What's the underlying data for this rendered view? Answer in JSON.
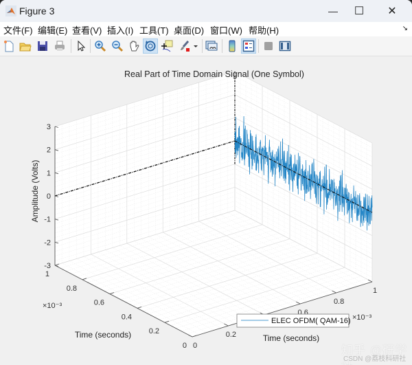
{
  "window": {
    "title": "Figure 3",
    "controls": {
      "minimize": "—",
      "maximize": "☐",
      "close": "✕"
    }
  },
  "menubar": {
    "items": [
      "文件(F)",
      "编辑(E)",
      "查看(V)",
      "插入(I)",
      "工具(T)",
      "桌面(D)",
      "窗口(W)",
      "帮助(H)"
    ],
    "dock_glyph": "↘"
  },
  "toolbar": {
    "buttons": [
      {
        "name": "new-figure-icon",
        "active": false
      },
      {
        "name": "open-file-icon",
        "active": false
      },
      {
        "name": "save-icon",
        "active": false
      },
      {
        "name": "print-icon",
        "active": false
      },
      {
        "name": "edit-plot-arrow-icon",
        "active": false
      },
      {
        "name": "zoom-in-icon",
        "active": false
      },
      {
        "name": "zoom-out-icon",
        "active": false
      },
      {
        "name": "pan-hand-icon",
        "active": false
      },
      {
        "name": "rotate-3d-icon",
        "active": true
      },
      {
        "name": "data-cursor-icon",
        "active": false
      },
      {
        "name": "brush-icon",
        "active": false
      },
      {
        "name": "link-plot-icon",
        "active": false
      },
      {
        "name": "insert-colorbar-icon",
        "active": false
      },
      {
        "name": "insert-legend-icon",
        "active": true
      },
      {
        "name": "hide-plot-tools-icon",
        "active": false
      },
      {
        "name": "show-plot-tools-icon",
        "active": false
      }
    ]
  },
  "chart_data": {
    "type": "line",
    "projection": "3d",
    "title": "Real Part of Time Domain Signal (One Symbol)",
    "zlabel": "Amplitude (Volts)",
    "xlabel": "Time (seconds)",
    "ylabel": "Time (seconds)",
    "z_ticks": [
      "3",
      "2",
      "1",
      "0",
      "-1",
      "-2",
      "-3"
    ],
    "zlim": [
      -3,
      3
    ],
    "x_ticks": [
      "0",
      "0.2",
      "0.4",
      "0.6",
      "0.8",
      "1"
    ],
    "x_exponent": "×10⁻³",
    "y_ticks": [
      "0",
      "0.2",
      "0.4",
      "0.6",
      "0.8",
      "1"
    ],
    "y_exponent": "×10⁻³",
    "xlim": [
      0,
      0.001
    ],
    "ylim": [
      0,
      0.001
    ],
    "grid": true,
    "minor_grid": true,
    "legend": {
      "entries": [
        "ELEC OFDM( QAM-16)"
      ],
      "position": "bottom-center"
    },
    "series": [
      {
        "name": "ELEC OFDM( QAM-16)",
        "color": "#0072BD",
        "description": "Noisy real-valued OFDM time-domain samples, amplitude roughly within -2.5..1.8 V, centered near 0, ~1000 samples over one symbol (0..1e-3 s)",
        "approx_range": [
          -2.6,
          1.9
        ],
        "samples": 1024
      },
      {
        "name": "zero-reference",
        "color": "#000000",
        "style": "dash-dot",
        "description": "Dashed black reference line at amplitude 0 along time axis, plus vertical dashed marker at back corner"
      }
    ]
  },
  "watermark": {
    "line1": "知乎 @研学社",
    "line2": "CSDN @荔枝科研社"
  }
}
